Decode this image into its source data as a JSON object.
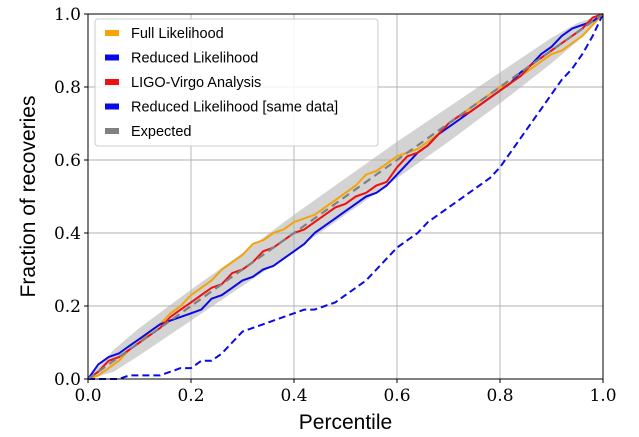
{
  "chart_data": {
    "type": "line",
    "xlabel": "Percentile",
    "ylabel": "Fraction of recoveries",
    "xlim": [
      0.0,
      1.0
    ],
    "ylim": [
      0.0,
      1.0
    ],
    "xticks": [
      "0.0",
      "0.2",
      "0.4",
      "0.6",
      "0.8",
      "1.0"
    ],
    "yticks": [
      "0.0",
      "0.2",
      "0.4",
      "0.6",
      "0.8",
      "1.0"
    ],
    "grid": true,
    "legend_position": "top-left",
    "confidence_band": {
      "color": "#d3d3d3",
      "x": [
        0.0,
        0.05,
        0.1,
        0.2,
        0.3,
        0.4,
        0.5,
        0.6,
        0.7,
        0.8,
        0.9,
        0.95,
        1.0
      ],
      "lower": [
        0.0,
        0.02,
        0.065,
        0.16,
        0.255,
        0.35,
        0.45,
        0.55,
        0.65,
        0.755,
        0.865,
        0.925,
        1.0
      ],
      "upper": [
        0.0,
        0.08,
        0.14,
        0.245,
        0.345,
        0.45,
        0.55,
        0.65,
        0.745,
        0.84,
        0.935,
        0.975,
        1.0
      ]
    },
    "series": [
      {
        "name": "Full Likelihood",
        "color": "#f5a30a",
        "style": "solid",
        "x": [
          0.0,
          0.02,
          0.04,
          0.06,
          0.08,
          0.1,
          0.12,
          0.14,
          0.16,
          0.18,
          0.2,
          0.22,
          0.24,
          0.26,
          0.28,
          0.3,
          0.32,
          0.34,
          0.36,
          0.38,
          0.4,
          0.42,
          0.44,
          0.46,
          0.48,
          0.5,
          0.52,
          0.54,
          0.56,
          0.58,
          0.6,
          0.62,
          0.64,
          0.66,
          0.68,
          0.7,
          0.72,
          0.74,
          0.76,
          0.78,
          0.8,
          0.82,
          0.84,
          0.86,
          0.88,
          0.9,
          0.92,
          0.94,
          0.96,
          0.98,
          1.0
        ],
        "y": [
          0.0,
          0.01,
          0.03,
          0.05,
          0.08,
          0.1,
          0.13,
          0.15,
          0.18,
          0.2,
          0.23,
          0.25,
          0.27,
          0.3,
          0.32,
          0.34,
          0.37,
          0.38,
          0.4,
          0.41,
          0.43,
          0.44,
          0.45,
          0.47,
          0.49,
          0.51,
          0.53,
          0.56,
          0.57,
          0.59,
          0.61,
          0.62,
          0.63,
          0.65,
          0.67,
          0.7,
          0.72,
          0.74,
          0.76,
          0.78,
          0.8,
          0.81,
          0.83,
          0.85,
          0.87,
          0.89,
          0.9,
          0.92,
          0.94,
          0.97,
          1.0
        ]
      },
      {
        "name": "Reduced Likelihood",
        "color": "#0a0ae6",
        "style": "solid",
        "x": [
          0.0,
          0.02,
          0.04,
          0.06,
          0.08,
          0.1,
          0.12,
          0.14,
          0.16,
          0.18,
          0.2,
          0.22,
          0.24,
          0.26,
          0.28,
          0.3,
          0.32,
          0.34,
          0.36,
          0.38,
          0.4,
          0.42,
          0.44,
          0.46,
          0.48,
          0.5,
          0.52,
          0.54,
          0.56,
          0.58,
          0.6,
          0.62,
          0.64,
          0.66,
          0.68,
          0.7,
          0.72,
          0.74,
          0.76,
          0.78,
          0.8,
          0.82,
          0.84,
          0.86,
          0.88,
          0.9,
          0.92,
          0.94,
          0.96,
          0.98,
          1.0
        ],
        "y": [
          0.0,
          0.04,
          0.06,
          0.07,
          0.09,
          0.11,
          0.13,
          0.15,
          0.16,
          0.17,
          0.18,
          0.19,
          0.22,
          0.23,
          0.25,
          0.27,
          0.28,
          0.3,
          0.31,
          0.33,
          0.35,
          0.37,
          0.4,
          0.42,
          0.44,
          0.46,
          0.48,
          0.5,
          0.51,
          0.53,
          0.56,
          0.59,
          0.62,
          0.64,
          0.67,
          0.69,
          0.71,
          0.73,
          0.75,
          0.77,
          0.79,
          0.81,
          0.84,
          0.86,
          0.89,
          0.91,
          0.94,
          0.96,
          0.97,
          0.98,
          1.0
        ]
      },
      {
        "name": "LIGO-Virgo Analysis",
        "color": "#ee1111",
        "style": "solid",
        "x": [
          0.0,
          0.02,
          0.04,
          0.06,
          0.08,
          0.1,
          0.12,
          0.14,
          0.16,
          0.18,
          0.2,
          0.22,
          0.24,
          0.26,
          0.28,
          0.3,
          0.32,
          0.34,
          0.36,
          0.38,
          0.4,
          0.42,
          0.44,
          0.46,
          0.48,
          0.5,
          0.52,
          0.54,
          0.56,
          0.58,
          0.6,
          0.62,
          0.64,
          0.66,
          0.68,
          0.7,
          0.72,
          0.74,
          0.76,
          0.78,
          0.8,
          0.82,
          0.84,
          0.86,
          0.88,
          0.9,
          0.92,
          0.94,
          0.96,
          0.98,
          1.0
        ],
        "y": [
          0.0,
          0.02,
          0.05,
          0.06,
          0.08,
          0.1,
          0.12,
          0.14,
          0.17,
          0.19,
          0.21,
          0.23,
          0.25,
          0.26,
          0.29,
          0.3,
          0.32,
          0.35,
          0.36,
          0.38,
          0.4,
          0.41,
          0.43,
          0.45,
          0.47,
          0.48,
          0.5,
          0.51,
          0.53,
          0.54,
          0.58,
          0.61,
          0.62,
          0.64,
          0.67,
          0.7,
          0.72,
          0.73,
          0.75,
          0.77,
          0.79,
          0.81,
          0.83,
          0.86,
          0.88,
          0.9,
          0.92,
          0.94,
          0.96,
          0.99,
          1.0
        ]
      },
      {
        "name": "Reduced Likelihood [same data]",
        "color": "#0a0ae6",
        "style": "dashed",
        "x": [
          0.0,
          0.02,
          0.04,
          0.06,
          0.08,
          0.1,
          0.12,
          0.14,
          0.16,
          0.18,
          0.2,
          0.22,
          0.24,
          0.26,
          0.28,
          0.3,
          0.32,
          0.34,
          0.36,
          0.38,
          0.4,
          0.42,
          0.44,
          0.46,
          0.48,
          0.5,
          0.52,
          0.54,
          0.56,
          0.58,
          0.6,
          0.62,
          0.64,
          0.66,
          0.68,
          0.7,
          0.72,
          0.74,
          0.76,
          0.78,
          0.8,
          0.82,
          0.84,
          0.86,
          0.88,
          0.9,
          0.92,
          0.94,
          0.96,
          0.98,
          1.0
        ],
        "y": [
          0.0,
          0.0,
          0.0,
          0.0,
          0.01,
          0.01,
          0.01,
          0.01,
          0.02,
          0.03,
          0.03,
          0.05,
          0.05,
          0.07,
          0.1,
          0.13,
          0.14,
          0.15,
          0.16,
          0.17,
          0.18,
          0.19,
          0.19,
          0.2,
          0.21,
          0.23,
          0.25,
          0.27,
          0.3,
          0.33,
          0.36,
          0.38,
          0.4,
          0.43,
          0.45,
          0.47,
          0.49,
          0.51,
          0.53,
          0.55,
          0.58,
          0.62,
          0.66,
          0.7,
          0.74,
          0.78,
          0.82,
          0.85,
          0.89,
          0.94,
          1.0
        ]
      },
      {
        "name": "Expected",
        "color": "#808080",
        "style": "dashed",
        "x": [
          0.0,
          1.0
        ],
        "y": [
          0.0,
          1.0
        ]
      }
    ]
  }
}
